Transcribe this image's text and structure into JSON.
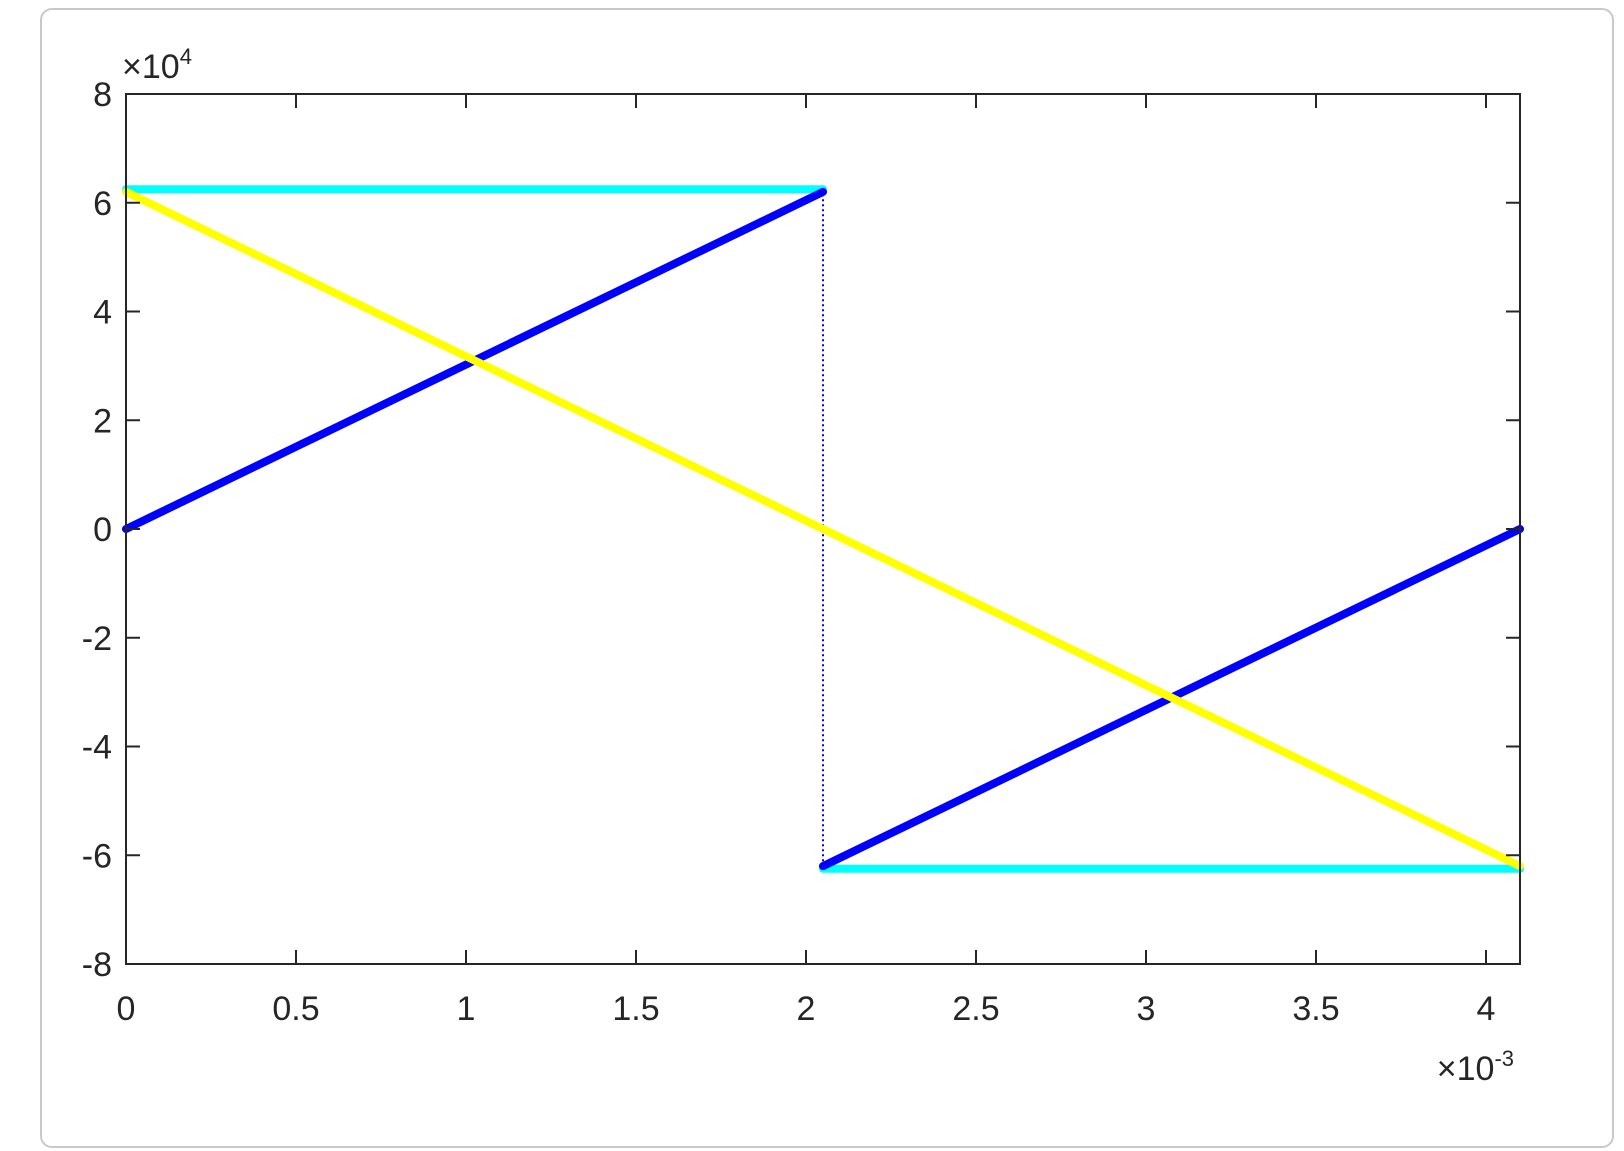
{
  "chart_data": {
    "type": "line",
    "title": "",
    "xlabel": "",
    "ylabel": "",
    "xlim": [
      0,
      0.0041
    ],
    "ylim": [
      -80000,
      80000
    ],
    "x_ticks": [
      {
        "value": 0,
        "label": "0"
      },
      {
        "value": 0.0005,
        "label": "0.5"
      },
      {
        "value": 0.001,
        "label": "1"
      },
      {
        "value": 0.0015,
        "label": "1.5"
      },
      {
        "value": 0.002,
        "label": "2"
      },
      {
        "value": 0.0025,
        "label": "2.5"
      },
      {
        "value": 0.003,
        "label": "3"
      },
      {
        "value": 0.0035,
        "label": "3.5"
      },
      {
        "value": 0.004,
        "label": "4"
      }
    ],
    "y_ticks": [
      {
        "value": -80000,
        "label": "-8"
      },
      {
        "value": -60000,
        "label": "-6"
      },
      {
        "value": -40000,
        "label": "-4"
      },
      {
        "value": -20000,
        "label": "-2"
      },
      {
        "value": 0,
        "label": "0"
      },
      {
        "value": 20000,
        "label": "2"
      },
      {
        "value": 40000,
        "label": "4"
      },
      {
        "value": 60000,
        "label": "6"
      },
      {
        "value": 80000,
        "label": "8"
      }
    ],
    "x_exponent": {
      "base": "×10",
      "power": "-3"
    },
    "y_exponent": {
      "base": "×10",
      "power": "4"
    },
    "grid": false,
    "series": [
      {
        "color": "#00ffff",
        "style": "solid",
        "x": [
          0,
          0.00205
        ],
        "y": [
          62500,
          62500
        ]
      },
      {
        "color": "#00ffff",
        "style": "solid",
        "x": [
          0.00205,
          0.0041
        ],
        "y": [
          -62500,
          -62500
        ]
      },
      {
        "color": "#0000ff",
        "style": "dotted",
        "x": [
          0.00205,
          0.00205
        ],
        "y": [
          62500,
          -62500
        ]
      },
      {
        "color": "#0000ff",
        "style": "solid",
        "x": [
          0,
          0.00205
        ],
        "y": [
          0,
          62000
        ]
      },
      {
        "color": "#0000ff",
        "style": "solid",
        "x": [
          0.00205,
          0.0041
        ],
        "y": [
          -62000,
          0
        ]
      },
      {
        "color": "#ffff00",
        "style": "solid",
        "x": [
          0,
          0.0041
        ],
        "y": [
          62000,
          -62000
        ]
      }
    ]
  }
}
